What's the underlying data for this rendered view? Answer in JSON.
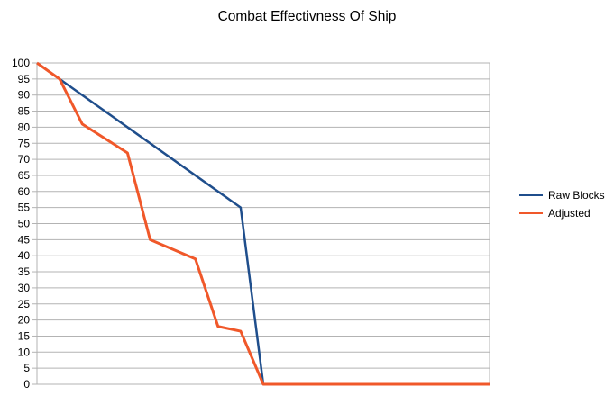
{
  "chart_data": {
    "type": "line",
    "title": "Combat Effectivness Of Ship",
    "xlabel": "",
    "ylabel": "",
    "ylim": [
      0,
      100
    ],
    "y_ticks": [
      0,
      5,
      10,
      15,
      20,
      25,
      30,
      35,
      40,
      45,
      50,
      55,
      60,
      65,
      70,
      75,
      80,
      85,
      90,
      95,
      100
    ],
    "grid": true,
    "legend_position": "right",
    "series": [
      {
        "name": "Raw Blocks",
        "color": "#1f4e8c",
        "x": [
          0,
          1,
          2,
          3,
          4,
          5,
          6,
          7,
          8,
          9,
          10,
          11,
          12,
          13,
          14,
          15,
          16,
          17,
          18,
          19,
          20
        ],
        "values": [
          100,
          95,
          null,
          null,
          null,
          null,
          null,
          null,
          null,
          55,
          0,
          0,
          0,
          0,
          0,
          0,
          0,
          0,
          0,
          0,
          0
        ]
      },
      {
        "name": "Adjusted",
        "color": "#f0582a",
        "x": [
          0,
          1,
          2,
          3,
          4,
          5,
          6,
          7,
          8,
          9,
          10,
          11,
          12,
          13,
          14,
          15,
          16,
          17,
          18,
          19,
          20
        ],
        "values": [
          100,
          95,
          81,
          null,
          72,
          45,
          null,
          39,
          18,
          16.5,
          0,
          0,
          0,
          0,
          0,
          0,
          0,
          0,
          0,
          0,
          0
        ]
      }
    ]
  }
}
